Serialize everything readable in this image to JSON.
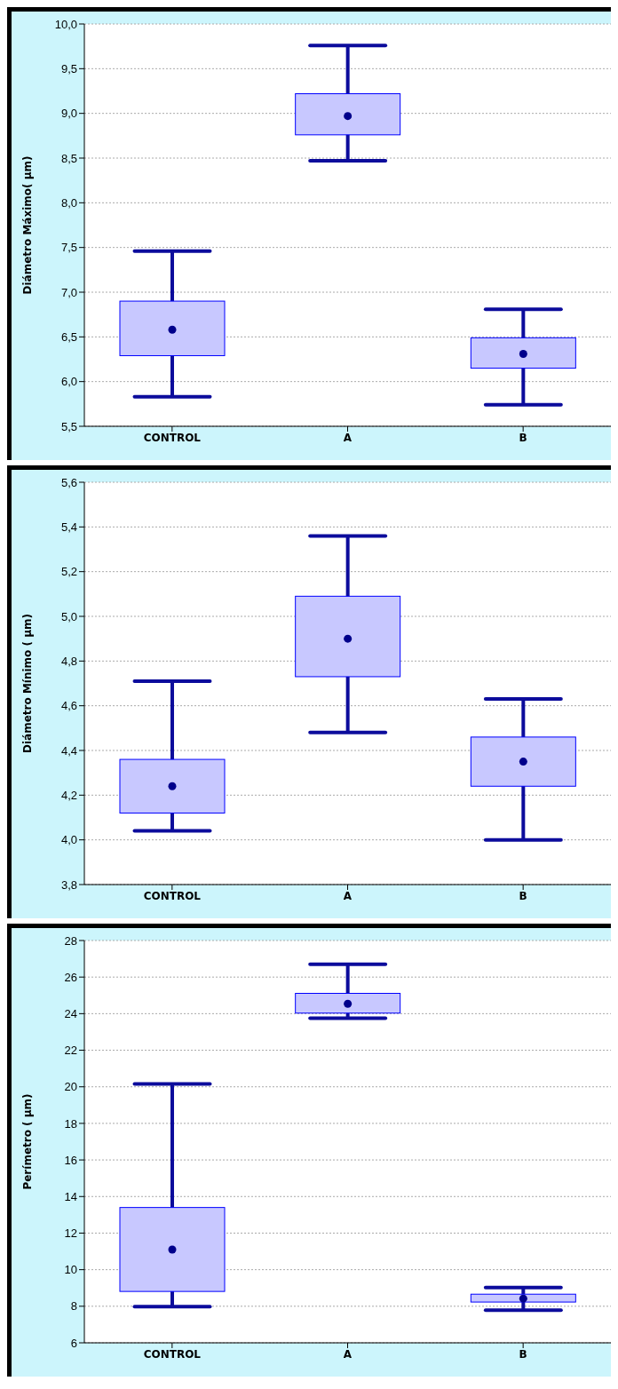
{
  "chart_data": [
    {
      "type": "box",
      "ylabel": "Diámetro Máximo( µm)",
      "categories": [
        "CONTROL",
        "A",
        "B"
      ],
      "ylim": [
        5.5,
        10
      ],
      "yticks": [
        {
          "value": 5.5,
          "label": "5,5"
        },
        {
          "value": 6,
          "label": "6,0"
        },
        {
          "value": 6.5,
          "label": "6,5"
        },
        {
          "value": 7,
          "label": "7,0"
        },
        {
          "value": 7.5,
          "label": "7,5"
        },
        {
          "value": 8,
          "label": "8,0"
        },
        {
          "value": 8.5,
          "label": "8,5"
        },
        {
          "value": 9,
          "label": "9,0"
        },
        {
          "value": 9.5,
          "label": "9,5"
        },
        {
          "value": 10,
          "label": "10,0"
        }
      ],
      "grid": "y",
      "series": [
        {
          "color": "#c8c8ff",
          "boxes": [
            {
              "low": 5.83,
              "q1": 6.29,
              "median": 6.58,
              "q3": 6.9,
              "high": 7.46
            },
            {
              "low": 8.47,
              "q1": 8.76,
              "median": 8.97,
              "q3": 9.22,
              "high": 9.76
            },
            {
              "low": 5.74,
              "q1": 6.15,
              "median": 6.31,
              "q3": 6.49,
              "high": 6.81
            }
          ]
        }
      ]
    },
    {
      "type": "box",
      "ylabel": "Diámetro Mínimo (  µm)",
      "categories": [
        "CONTROL",
        "A",
        "B"
      ],
      "ylim": [
        3.8,
        5.6
      ],
      "yticks": [
        {
          "value": 3.8,
          "label": "3,8"
        },
        {
          "value": 4,
          "label": "4,0"
        },
        {
          "value": 4.2,
          "label": "4,2"
        },
        {
          "value": 4.4,
          "label": "4,4"
        },
        {
          "value": 4.6,
          "label": "4,6"
        },
        {
          "value": 4.8,
          "label": "4,8"
        },
        {
          "value": 5,
          "label": "5,0"
        },
        {
          "value": 5.2,
          "label": "5,2"
        },
        {
          "value": 5.4,
          "label": "5,4"
        },
        {
          "value": 5.6,
          "label": "5,6"
        }
      ],
      "grid": "y",
      "series": [
        {
          "color": "#c8c8ff",
          "boxes": [
            {
              "low": 4.04,
              "q1": 4.12,
              "median": 4.24,
              "q3": 4.36,
              "high": 4.71
            },
            {
              "low": 4.48,
              "q1": 4.73,
              "median": 4.9,
              "q3": 5.09,
              "high": 5.36
            },
            {
              "low": 4.0,
              "q1": 4.24,
              "median": 4.35,
              "q3": 4.46,
              "high": 4.63
            }
          ]
        }
      ]
    },
    {
      "type": "box",
      "ylabel": "Perímetro ( µm)",
      "categories": [
        "CONTROL",
        "A",
        "B"
      ],
      "ylim": [
        6,
        28
      ],
      "yticks": [
        6,
        8,
        10,
        12,
        14,
        16,
        18,
        20,
        22,
        24,
        26,
        28
      ],
      "grid": "y",
      "series": [
        {
          "color": "#c8c8ff",
          "boxes": [
            {
              "low": 7.98,
              "q1": 8.81,
              "median": 11.1,
              "q3": 13.4,
              "high": 20.16
            },
            {
              "low": 23.75,
              "q1": 24.03,
              "median": 24.54,
              "q3": 25.11,
              "high": 26.7
            },
            {
              "low": 7.79,
              "q1": 8.23,
              "median": 8.42,
              "q3": 8.66,
              "high": 9.02
            }
          ]
        }
      ]
    }
  ]
}
